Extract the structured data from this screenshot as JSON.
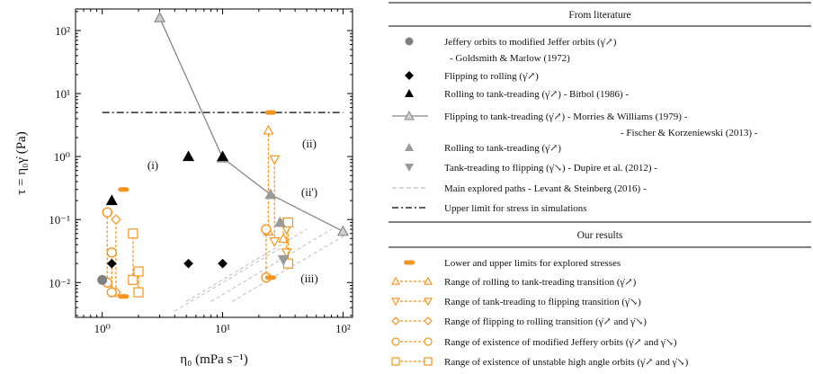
{
  "chart_data": {
    "type": "scatter",
    "x_scale": "log",
    "y_scale": "log",
    "xlim": [
      0.6,
      120
    ],
    "ylim": [
      0.0028,
      220
    ],
    "xlabel": "η₀ (mPa s⁻¹)",
    "ylabel": "τ = η₀γ̇ (Pa)",
    "x_ticks": [
      "10⁰",
      "10¹",
      "10²"
    ],
    "y_ticks": [
      "10⁻²",
      "10⁻¹",
      "10⁰",
      "10¹",
      "10²"
    ],
    "region_labels": [
      "(i)",
      "(ii)",
      "(ii')",
      "(iii)"
    ],
    "upper_limit_stress": 5,
    "literature": {
      "jeffery": [
        [
          1.0,
          0.011
        ]
      ],
      "flipping_to_rolling": [
        [
          1.2,
          0.02
        ],
        [
          5.2,
          0.02
        ],
        [
          10,
          0.02
        ]
      ],
      "rolling_tank_bitbol": [
        [
          1.2,
          0.2
        ],
        [
          5.2,
          1.0
        ],
        [
          10,
          1.0
        ]
      ],
      "flipping_tank_line": [
        [
          3,
          160
        ],
        [
          10,
          0.95
        ],
        [
          25,
          0.25
        ],
        [
          100,
          0.065
        ]
      ],
      "rolling_tank": [
        [
          25,
          0.25
        ],
        [
          30,
          0.09
        ]
      ],
      "tank_to_flipping": [
        [
          32,
          0.023
        ]
      ],
      "explored_paths": [
        [
          [
            5,
            0.005
          ],
          [
            50,
            0.07
          ]
        ],
        [
          [
            8,
            0.005
          ],
          [
            80,
            0.07
          ]
        ],
        [
          [
            12,
            0.005
          ],
          [
            110,
            0.06
          ]
        ],
        [
          [
            4,
            0.0035
          ],
          [
            30,
            0.035
          ]
        ]
      ]
    },
    "our_results": {
      "limits": [
        [
          1.5,
          0.3
        ],
        [
          1.5,
          0.006
        ],
        [
          25,
          5
        ],
        [
          25,
          0.012
        ]
      ],
      "rolling_tank_ranges": [
        [
          24,
          0.065,
          2.6
        ],
        [
          32,
          0.05,
          0.09
        ]
      ],
      "tank_flipping_ranges": [
        [
          27,
          0.045,
          0.9
        ],
        [
          34,
          0.03,
          0.07
        ]
      ],
      "flipping_rolling_ranges": [
        [
          1.3,
          0.007,
          0.1
        ]
      ],
      "jeffery_ranges": [
        [
          1.1,
          0.01,
          0.13
        ],
        [
          1.2,
          0.007,
          0.03
        ],
        [
          23,
          0.012,
          0.07
        ]
      ],
      "unstable_ranges": [
        [
          1.8,
          0.011,
          0.06
        ],
        [
          2.0,
          0.007,
          0.015
        ],
        [
          35,
          0.02,
          0.09
        ]
      ]
    },
    "colors": {
      "orange": "#f7941d",
      "gray": "#8c8c8c",
      "dark": "#000000"
    }
  },
  "legend": {
    "literature_header": "From literature",
    "results_header": "Our results",
    "literature_items": [
      {
        "marker": "circle",
        "text": "Jeffery orbits to modified Jeffer orbits (γ̇↗)"
      },
      {
        "marker": "none",
        "text": "- Goldsmith & Marlow (1972)"
      },
      {
        "marker": "diamond",
        "text": "Flipping to rolling (γ̇↗)"
      },
      {
        "marker": "triangle-up",
        "text": "Rolling to tank-treading (γ̇↗) - Bitbol (1986) -"
      },
      {
        "marker": "line-triangle",
        "text": "Flipping to tank-treading (γ̇↗) - Morries & Williams (1979) -"
      },
      {
        "marker": "none",
        "text": "- Fischer & Korzeniewski (2013) -"
      },
      {
        "marker": "triangle-up-gray",
        "text": "Rolling to tank-treading (γ̇↗)"
      },
      {
        "marker": "triangle-down-gray",
        "text": "Tank-treading to flipping (γ̇↘) - Dupire et al. (2012) -"
      },
      {
        "marker": "dash",
        "text": "Main explored paths - Levant & Steinberg (2016) -"
      },
      {
        "marker": "dashdot",
        "text": "Upper limit for stress in simulations"
      }
    ],
    "result_items": [
      {
        "marker": "bar",
        "text": "Lower and upper limits for explored stresses"
      },
      {
        "marker": "tri-up-range",
        "text": "Range of rolling to tank-treading transition (γ̇↗)"
      },
      {
        "marker": "tri-down-range",
        "text": "Range of tank-treading to flipping transition (γ̇↘)"
      },
      {
        "marker": "diamond-range",
        "text": "Range of flipping to rolling transition (γ̇↗ and γ̇↘)"
      },
      {
        "marker": "circle-range",
        "text": "Range of existence of modified Jeffery orbits (γ̇↗ and γ̇↘)"
      },
      {
        "marker": "square-range",
        "text": "Range of existence of unstable high angle orbits (γ̇↗ and γ̇↘)"
      }
    ]
  }
}
